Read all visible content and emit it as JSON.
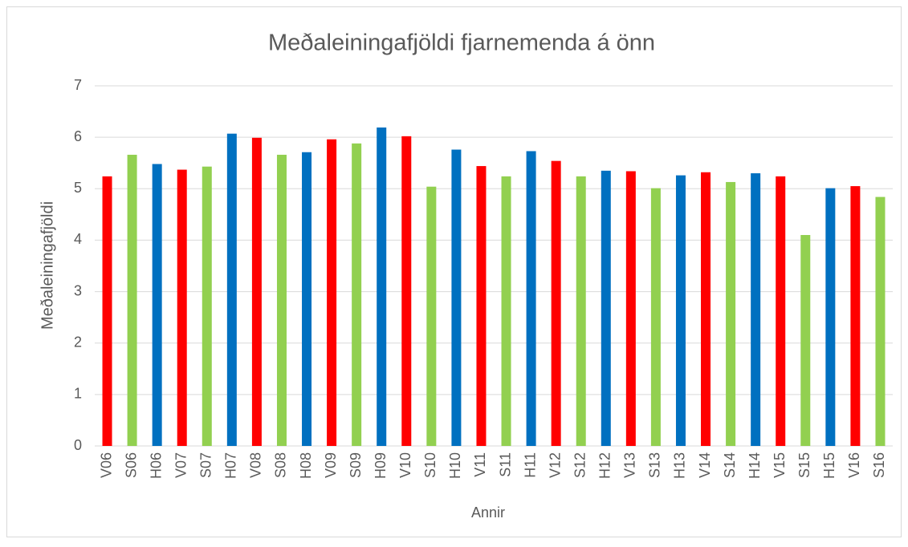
{
  "chart_data": {
    "type": "bar",
    "title": "Meðaleiningafjöldi fjarnemenda á önn",
    "x_label": "Annir",
    "y_label": "Meðaleiningafjöldi",
    "categories": [
      "V06",
      "S06",
      "H06",
      "V07",
      "S07",
      "H07",
      "V08",
      "S08",
      "H08",
      "V09",
      "S09",
      "H09",
      "V10",
      "S10",
      "H10",
      "V11",
      "S11",
      "H11",
      "V12",
      "S12",
      "H12",
      "V13",
      "S13",
      "H13",
      "V14",
      "S14",
      "H14",
      "V15",
      "S15",
      "H15",
      "V16",
      "S16"
    ],
    "values": [
      5.24,
      5.66,
      5.48,
      5.37,
      5.43,
      6.07,
      5.99,
      5.66,
      5.71,
      5.96,
      5.88,
      6.19,
      6.02,
      5.04,
      5.76,
      5.44,
      5.24,
      5.73,
      5.54,
      5.24,
      5.35,
      5.34,
      5.01,
      5.26,
      5.32,
      5.13,
      5.3,
      5.24,
      4.1,
      5.01,
      5.05,
      4.84
    ],
    "colors": [
      "#ff0000",
      "#92d050",
      "#0070c0",
      "#ff0000",
      "#92d050",
      "#0070c0",
      "#ff0000",
      "#92d050",
      "#0070c0",
      "#ff0000",
      "#92d050",
      "#0070c0",
      "#ff0000",
      "#92d050",
      "#0070c0",
      "#ff0000",
      "#92d050",
      "#0070c0",
      "#ff0000",
      "#92d050",
      "#0070c0",
      "#ff0000",
      "#92d050",
      "#0070c0",
      "#ff0000",
      "#92d050",
      "#0070c0",
      "#ff0000",
      "#92d050",
      "#0070c0",
      "#ff0000",
      "#92d050"
    ],
    "ylim": [
      0,
      7
    ],
    "yticks": [
      0,
      1,
      2,
      3,
      4,
      5,
      6,
      7
    ],
    "grid": true
  }
}
